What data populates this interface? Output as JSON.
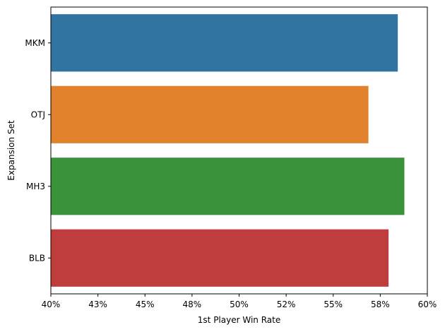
{
  "chart_data": {
    "type": "bar",
    "orientation": "horizontal",
    "title": "",
    "xlabel": "1st Player Win Rate",
    "ylabel": "Expansion Set",
    "categories": [
      "MKM",
      "OTJ",
      "MH3",
      "BLB"
    ],
    "values": [
      0.5843,
      0.5687,
      0.5878,
      0.5794
    ],
    "colors": [
      "#3274a1",
      "#e1812c",
      "#3a923a",
      "#c03d3e"
    ],
    "xlim": [
      0.4,
      0.6
    ],
    "x_ticks": [
      0.4,
      0.425,
      0.45,
      0.475,
      0.5,
      0.525,
      0.55,
      0.575,
      0.6
    ],
    "x_tick_labels": [
      "40%",
      "43%",
      "45%",
      "48%",
      "50%",
      "52%",
      "55%",
      "58%",
      "60%"
    ],
    "grid": false,
    "legend": "none"
  }
}
